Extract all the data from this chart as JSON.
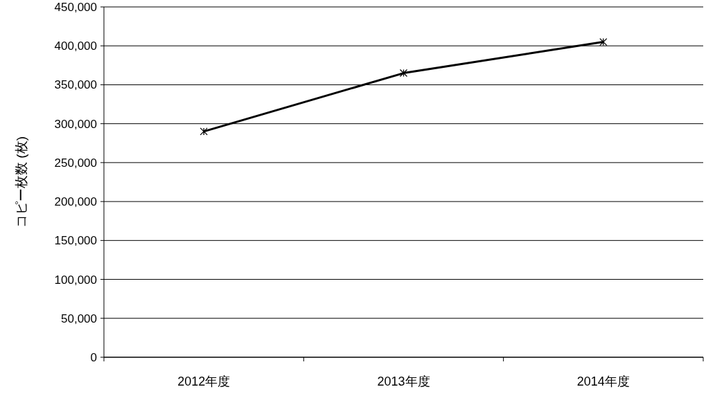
{
  "chart_data": {
    "type": "line",
    "ylabel": "コピー枚数 (枚)",
    "categories": [
      "2012年度",
      "2013年度",
      "2014年度"
    ],
    "series": [
      {
        "color": "#000000",
        "values": [
          290000,
          365000,
          405000
        ]
      }
    ],
    "ylim": [
      0,
      450000
    ],
    "yticks": [
      0,
      {
        "value": 50000,
        "label": "50,000"
      },
      {
        "value": 100000,
        "label": "100,000"
      },
      {
        "value": 150000,
        "label": "150,000"
      },
      {
        "value": 200000,
        "label": "200,000"
      },
      {
        "value": 250000,
        "label": "250,000"
      },
      {
        "value": 300000,
        "label": "300,000"
      },
      {
        "value": 350000,
        "label": "350,000"
      },
      {
        "value": 400000,
        "label": "400,000"
      },
      {
        "value": 450000,
        "label": "450,000"
      }
    ],
    "grid": "y",
    "marker": "cross",
    "line_style": "solid"
  }
}
